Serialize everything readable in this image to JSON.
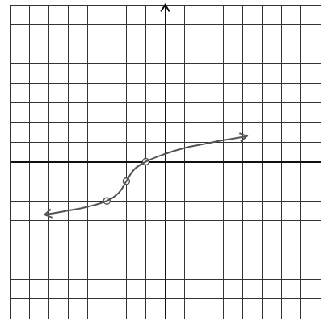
{
  "chart_data": {
    "type": "scatter",
    "xlim": [
      -8,
      8
    ],
    "ylim": [
      -8,
      8
    ],
    "xticks": [
      -8,
      -7,
      -6,
      -5,
      -4,
      -3,
      -2,
      -1,
      0,
      1,
      2,
      3,
      4,
      5,
      6,
      7,
      8
    ],
    "yticks": [
      -8,
      -7,
      -6,
      -5,
      -4,
      -3,
      -2,
      -1,
      0,
      1,
      2,
      3,
      4,
      5,
      6,
      7,
      8
    ],
    "grid": true,
    "tick_labels": false,
    "series": [
      {
        "type": "line",
        "color": "#555555",
        "marker": "none",
        "line_style": "solid",
        "x": [
          -6.2,
          -5,
          -4,
          -3,
          -2.4,
          -2,
          -1.6,
          -1,
          0,
          1,
          2,
          3,
          4.2
        ],
        "values": [
          -2.7,
          -2.5,
          -2.3,
          -2,
          -1.6,
          -1,
          -0.4,
          0,
          0.4,
          0.7,
          0.9,
          1.1,
          1.3
        ]
      },
      {
        "type": "scatter",
        "color": "#555555",
        "marker": "circle",
        "x": [
          -3,
          -2,
          -1
        ],
        "values": [
          -2,
          -1,
          0
        ]
      }
    ]
  }
}
